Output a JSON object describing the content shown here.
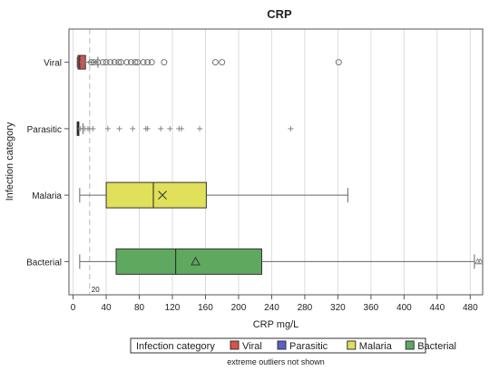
{
  "chart_data": {
    "type": "boxplot",
    "orientation": "horizontal",
    "title": "CRP",
    "xlabel": "CRP mg/L",
    "ylabel": "Infection category",
    "xlim": [
      -5,
      495
    ],
    "xticks": [
      0,
      40,
      80,
      120,
      160,
      200,
      240,
      280,
      320,
      360,
      400,
      440,
      480
    ],
    "grid": true,
    "reference_line": {
      "x": 20,
      "label": "20"
    },
    "legend": {
      "title": "Infection category",
      "placement": "bottom"
    },
    "note": "extreme outliers not shown",
    "categories": [
      "Viral",
      "Parasitic",
      "Malaria",
      "Bacterial"
    ],
    "series": [
      {
        "name": "Viral",
        "color": "#d9534f",
        "marker": "circle",
        "min": 5,
        "q1": 6,
        "median": 8,
        "q3": 15,
        "max": 30,
        "mean": 12,
        "outliers": [
          22,
          25,
          30,
          36,
          40,
          45,
          50,
          55,
          58,
          65,
          70,
          75,
          78,
          85,
          90,
          95,
          110,
          172,
          180,
          321
        ]
      },
      {
        "name": "Parasitic",
        "color": "#5b5fc7",
        "marker": "plus",
        "min": 5,
        "q1": 5,
        "median": 6,
        "q3": 7,
        "max": 12,
        "mean": 9,
        "outliers": [
          14,
          18,
          20,
          24,
          42,
          56,
          72,
          88,
          90,
          106,
          117,
          128,
          131,
          153,
          263
        ]
      },
      {
        "name": "Malaria",
        "color": "#e0e05a",
        "marker": "x",
        "min": 8,
        "q1": 40,
        "median": 97,
        "q3": 161,
        "max": 332,
        "mean": 108,
        "outliers": []
      },
      {
        "name": "Bacterial",
        "color": "#5fa85f",
        "marker": "triangle",
        "min": 8,
        "q1": 52,
        "median": 124,
        "q3": 228,
        "max": 485,
        "mean": 148,
        "outliers": [
          489,
          492
        ]
      }
    ]
  }
}
